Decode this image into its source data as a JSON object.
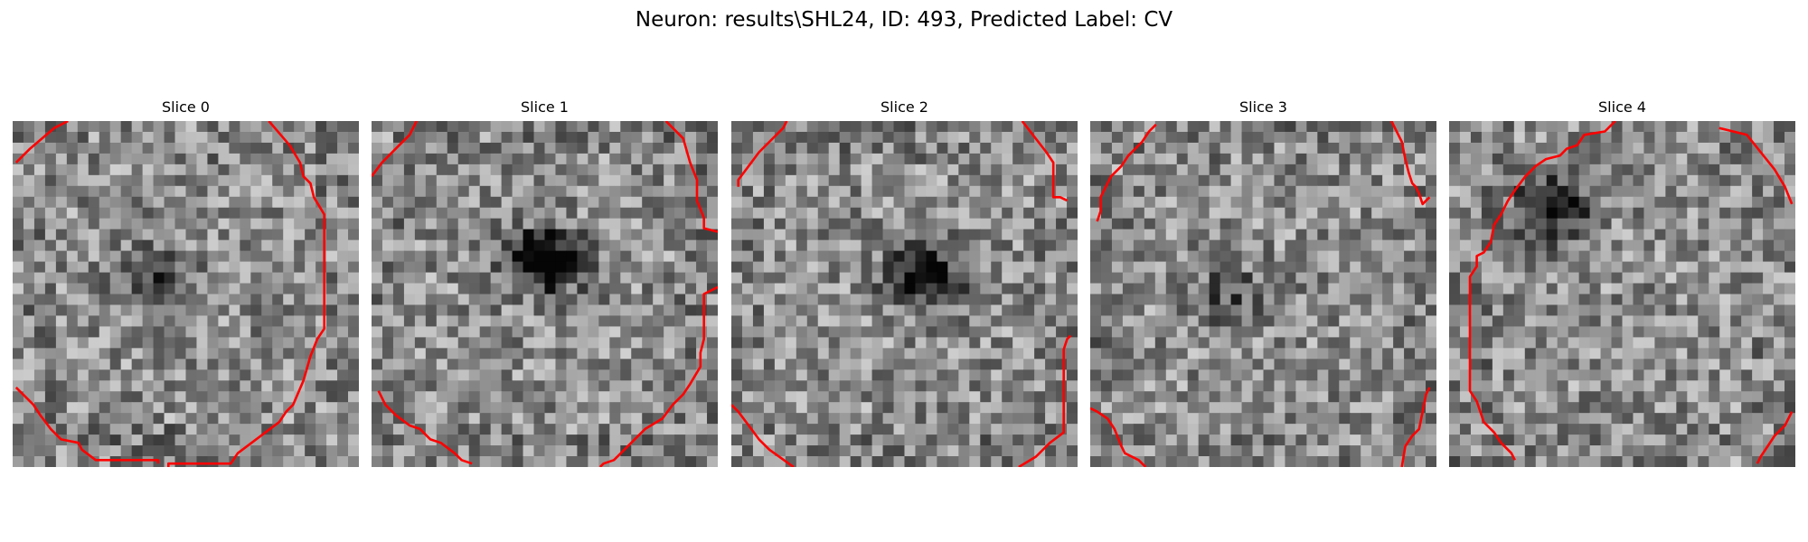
{
  "figure": {
    "title": "Neuron: results\\SHL24, ID: 493, Predicted Label: CV",
    "contour_color": "#ff0000",
    "colormap": "gray",
    "slices": [
      {
        "title": "Slice 0",
        "dark_center": [
          0.42,
          0.45
        ],
        "dark_strength": 0.35,
        "seed": 11,
        "contour": [
          [
            [
              0.01,
              0.12
            ],
            [
              0.05,
              0.08
            ],
            [
              0.12,
              0.02
            ],
            [
              0.16,
              0.0
            ]
          ],
          [
            [
              0.74,
              0.0
            ],
            [
              0.8,
              0.07
            ],
            [
              0.83,
              0.12
            ],
            [
              0.84,
              0.16
            ],
            [
              0.86,
              0.18
            ],
            [
              0.87,
              0.22
            ],
            [
              0.9,
              0.27
            ],
            [
              0.9,
              0.47
            ],
            [
              0.9,
              0.6
            ],
            [
              0.88,
              0.63
            ],
            [
              0.86,
              0.68
            ],
            [
              0.84,
              0.75
            ],
            [
              0.81,
              0.82
            ],
            [
              0.79,
              0.84
            ],
            [
              0.77,
              0.87
            ],
            [
              0.73,
              0.9
            ],
            [
              0.69,
              0.93
            ],
            [
              0.65,
              0.96
            ],
            [
              0.63,
              0.99
            ],
            [
              0.45,
              0.99
            ],
            [
              0.45,
              1.0
            ]
          ],
          [
            [
              0.42,
              0.99
            ],
            [
              0.42,
              0.98
            ],
            [
              0.24,
              0.98
            ],
            [
              0.2,
              0.95
            ],
            [
              0.19,
              0.93
            ],
            [
              0.14,
              0.92
            ],
            [
              0.11,
              0.89
            ],
            [
              0.08,
              0.85
            ],
            [
              0.06,
              0.82
            ],
            [
              0.01,
              0.77
            ]
          ]
        ]
      },
      {
        "title": "Slice 1",
        "dark_center": [
          0.5,
          0.4
        ],
        "dark_strength": 0.75,
        "seed": 23,
        "contour": [
          [
            [
              0.0,
              0.16
            ],
            [
              0.03,
              0.12
            ],
            [
              0.07,
              0.08
            ],
            [
              0.11,
              0.04
            ],
            [
              0.13,
              0.0
            ]
          ],
          [
            [
              0.85,
              0.0
            ],
            [
              0.9,
              0.05
            ],
            [
              0.92,
              0.12
            ],
            [
              0.94,
              0.17
            ],
            [
              0.94,
              0.23
            ],
            [
              0.96,
              0.28
            ],
            [
              0.96,
              0.31
            ],
            [
              1.0,
              0.32
            ]
          ],
          [
            [
              1.0,
              0.48
            ],
            [
              0.96,
              0.5
            ],
            [
              0.96,
              0.63
            ],
            [
              0.95,
              0.67
            ],
            [
              0.95,
              0.71
            ],
            [
              0.92,
              0.76
            ],
            [
              0.9,
              0.79
            ],
            [
              0.87,
              0.82
            ],
            [
              0.84,
              0.86
            ],
            [
              0.79,
              0.89
            ],
            [
              0.75,
              0.93
            ],
            [
              0.7,
              0.98
            ],
            [
              0.67,
              0.99
            ],
            [
              0.66,
              1.0
            ]
          ],
          [
            [
              0.29,
              0.99
            ],
            [
              0.26,
              0.98
            ],
            [
              0.24,
              0.96
            ],
            [
              0.2,
              0.93
            ],
            [
              0.17,
              0.92
            ],
            [
              0.14,
              0.89
            ],
            [
              0.11,
              0.88
            ],
            [
              0.07,
              0.85
            ],
            [
              0.04,
              0.82
            ],
            [
              0.02,
              0.78
            ]
          ]
        ]
      },
      {
        "title": "Slice 2",
        "dark_center": [
          0.56,
          0.45
        ],
        "dark_strength": 0.6,
        "seed": 37,
        "contour": [
          [
            [
              0.02,
              0.19
            ],
            [
              0.02,
              0.17
            ],
            [
              0.05,
              0.13
            ],
            [
              0.08,
              0.09
            ],
            [
              0.11,
              0.06
            ],
            [
              0.15,
              0.02
            ],
            [
              0.16,
              0.0
            ]
          ],
          [
            [
              0.84,
              0.0
            ],
            [
              0.91,
              0.09
            ],
            [
              0.93,
              0.12
            ],
            [
              0.93,
              0.22
            ],
            [
              0.95,
              0.22
            ],
            [
              0.97,
              0.23
            ]
          ],
          [
            [
              0.98,
              0.62
            ],
            [
              0.97,
              0.63
            ],
            [
              0.96,
              0.66
            ],
            [
              0.96,
              0.9
            ],
            [
              0.92,
              0.93
            ],
            [
              0.88,
              0.97
            ],
            [
              0.83,
              1.0
            ]
          ],
          [
            [
              0.18,
              1.0
            ],
            [
              0.11,
              0.95
            ],
            [
              0.08,
              0.92
            ],
            [
              0.05,
              0.88
            ],
            [
              0.02,
              0.84
            ],
            [
              0.0,
              0.82
            ]
          ]
        ]
      },
      {
        "title": "Slice 3",
        "dark_center": [
          0.4,
          0.5
        ],
        "dark_strength": 0.25,
        "seed": 53,
        "contour": [
          [
            [
              0.02,
              0.29
            ],
            [
              0.03,
              0.26
            ],
            [
              0.03,
              0.22
            ],
            [
              0.04,
              0.2
            ],
            [
              0.06,
              0.16
            ],
            [
              0.09,
              0.13
            ],
            [
              0.11,
              0.1
            ],
            [
              0.15,
              0.06
            ],
            [
              0.17,
              0.03
            ],
            [
              0.19,
              0.01
            ]
          ],
          [
            [
              0.87,
              0.0
            ],
            [
              0.9,
              0.06
            ],
            [
              0.91,
              0.11
            ],
            [
              0.92,
              0.15
            ],
            [
              0.93,
              0.18
            ],
            [
              0.94,
              0.19
            ],
            [
              0.95,
              0.21
            ],
            [
              0.96,
              0.24
            ],
            [
              0.98,
              0.22
            ]
          ],
          [
            [
              0.98,
              0.77
            ],
            [
              0.97,
              0.79
            ],
            [
              0.96,
              0.84
            ],
            [
              0.95,
              0.89
            ],
            [
              0.93,
              0.91
            ],
            [
              0.91,
              0.94
            ],
            [
              0.9,
              1.0
            ]
          ],
          [
            [
              0.16,
              1.0
            ],
            [
              0.14,
              0.98
            ],
            [
              0.1,
              0.96
            ],
            [
              0.09,
              0.94
            ],
            [
              0.07,
              0.89
            ],
            [
              0.05,
              0.86
            ],
            [
              0.02,
              0.84
            ],
            [
              0.0,
              0.83
            ]
          ]
        ]
      },
      {
        "title": "Slice 4",
        "dark_center": [
          0.3,
          0.25
        ],
        "dark_strength": 0.55,
        "seed": 71,
        "contour": [
          [
            [
              0.48,
              0.0
            ],
            [
              0.45,
              0.03
            ],
            [
              0.39,
              0.04
            ],
            [
              0.37,
              0.07
            ],
            [
              0.34,
              0.08
            ],
            [
              0.32,
              0.1
            ],
            [
              0.28,
              0.11
            ],
            [
              0.25,
              0.13
            ],
            [
              0.22,
              0.16
            ],
            [
              0.19,
              0.2
            ],
            [
              0.17,
              0.23
            ],
            [
              0.15,
              0.27
            ],
            [
              0.13,
              0.3
            ],
            [
              0.12,
              0.35
            ],
            [
              0.1,
              0.38
            ],
            [
              0.08,
              0.39
            ],
            [
              0.08,
              0.42
            ],
            [
              0.06,
              0.45
            ],
            [
              0.06,
              0.78
            ],
            [
              0.08,
              0.81
            ],
            [
              0.09,
              0.84
            ],
            [
              0.1,
              0.87
            ],
            [
              0.13,
              0.9
            ],
            [
              0.15,
              0.93
            ],
            [
              0.18,
              0.96
            ],
            [
              0.19,
              0.98
            ]
          ],
          [
            [
              0.78,
              0.02
            ],
            [
              0.82,
              0.03
            ],
            [
              0.86,
              0.04
            ],
            [
              0.9,
              0.09
            ],
            [
              0.94,
              0.14
            ],
            [
              0.97,
              0.19
            ],
            [
              0.99,
              0.24
            ]
          ],
          [
            [
              0.99,
              0.84
            ],
            [
              0.97,
              0.88
            ],
            [
              0.94,
              0.91
            ],
            [
              0.92,
              0.94
            ],
            [
              0.9,
              0.97
            ],
            [
              0.89,
              0.99
            ]
          ]
        ]
      }
    ]
  }
}
